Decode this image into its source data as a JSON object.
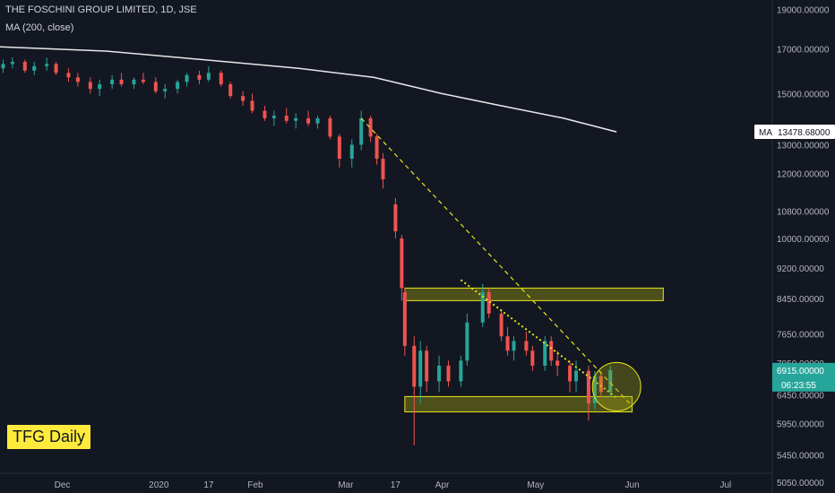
{
  "header": {
    "title": "THE FOSCHINI GROUP LIMITED, 1D, JSE",
    "indicator": "MA (200, close)"
  },
  "badge": {
    "label": "TFG Daily"
  },
  "colors": {
    "background": "#131722",
    "up": "#26a69a",
    "down": "#ef5350",
    "ma": "#e8e8e8",
    "annotation": "#e6e619",
    "zone_fill": "rgba(150,150,20,0.45)",
    "text": "#b2b5be"
  },
  "chart_data": {
    "type": "candlestick",
    "title": "THE FOSCHINI GROUP LIMITED, 1D, JSE",
    "y_scale": "log",
    "ylim": [
      4900,
      19500
    ],
    "xlim": [
      "2019-11-11",
      "2020-07-16"
    ],
    "x_ticks": [
      {
        "date": "2019-12-01",
        "label": "Dec"
      },
      {
        "date": "2020-01-01",
        "label": "2020"
      },
      {
        "date": "2020-01-17",
        "label": "17"
      },
      {
        "date": "2020-02-01",
        "label": "Feb"
      },
      {
        "date": "2020-03-01",
        "label": "Mar"
      },
      {
        "date": "2020-03-17",
        "label": "17"
      },
      {
        "date": "2020-04-01",
        "label": "Apr"
      },
      {
        "date": "2020-05-01",
        "label": "May"
      },
      {
        "date": "2020-06-01",
        "label": "Jun"
      },
      {
        "date": "2020-07-01",
        "label": "Jul"
      }
    ],
    "y_ticks": [
      "19000.00000",
      "17000.00000",
      "15000.00000",
      "13000.00000",
      "12000.00000",
      "10800.00000",
      "10000.00000",
      "9200.00000",
      "8450.00000",
      "7650.00000",
      "7050.00000",
      "6450.00000",
      "5950.00000",
      "5450.00000",
      "5050.00000"
    ],
    "y_tick_values": [
      19000,
      17000,
      15000,
      13000,
      12000,
      10800,
      10000,
      9200,
      8450,
      7650,
      7050,
      6450,
      5950,
      5450,
      5050
    ],
    "candles": [
      {
        "date": "2019-11-12",
        "o": 16100,
        "h": 16500,
        "l": 15900,
        "c": 16300
      },
      {
        "date": "2019-11-15",
        "o": 16300,
        "h": 16600,
        "l": 16100,
        "c": 16400
      },
      {
        "date": "2019-11-19",
        "o": 16400,
        "h": 16500,
        "l": 15900,
        "c": 16000
      },
      {
        "date": "2019-11-22",
        "o": 16000,
        "h": 16400,
        "l": 15800,
        "c": 16200
      },
      {
        "date": "2019-11-26",
        "o": 16200,
        "h": 16600,
        "l": 16000,
        "c": 16300
      },
      {
        "date": "2019-11-29",
        "o": 16300,
        "h": 16400,
        "l": 15800,
        "c": 15900
      },
      {
        "date": "2019-12-03",
        "o": 15900,
        "h": 16100,
        "l": 15500,
        "c": 15700
      },
      {
        "date": "2019-12-06",
        "o": 15700,
        "h": 15900,
        "l": 15300,
        "c": 15500
      },
      {
        "date": "2019-12-10",
        "o": 15500,
        "h": 15700,
        "l": 15000,
        "c": 15200
      },
      {
        "date": "2019-12-13",
        "o": 15200,
        "h": 15600,
        "l": 14900,
        "c": 15400
      },
      {
        "date": "2019-12-17",
        "o": 15400,
        "h": 15800,
        "l": 15200,
        "c": 15600
      },
      {
        "date": "2019-12-20",
        "o": 15600,
        "h": 15900,
        "l": 15300,
        "c": 15400
      },
      {
        "date": "2019-12-24",
        "o": 15400,
        "h": 15700,
        "l": 15200,
        "c": 15600
      },
      {
        "date": "2019-12-27",
        "o": 15600,
        "h": 15900,
        "l": 15400,
        "c": 15500
      },
      {
        "date": "2019-12-31",
        "o": 15500,
        "h": 15700,
        "l": 15000,
        "c": 15100
      },
      {
        "date": "2020-01-03",
        "o": 15100,
        "h": 15400,
        "l": 14800,
        "c": 15200
      },
      {
        "date": "2020-01-07",
        "o": 15200,
        "h": 15600,
        "l": 15000,
        "c": 15500
      },
      {
        "date": "2020-01-10",
        "o": 15500,
        "h": 15900,
        "l": 15300,
        "c": 15800
      },
      {
        "date": "2020-01-14",
        "o": 15800,
        "h": 16000,
        "l": 15400,
        "c": 15600
      },
      {
        "date": "2020-01-17",
        "o": 15600,
        "h": 16200,
        "l": 15500,
        "c": 15900
      },
      {
        "date": "2020-01-21",
        "o": 15900,
        "h": 16000,
        "l": 15300,
        "c": 15400
      },
      {
        "date": "2020-01-24",
        "o": 15400,
        "h": 15500,
        "l": 14800,
        "c": 14900
      },
      {
        "date": "2020-01-28",
        "o": 14900,
        "h": 15100,
        "l": 14500,
        "c": 14700
      },
      {
        "date": "2020-01-31",
        "o": 14700,
        "h": 15000,
        "l": 14200,
        "c": 14300
      },
      {
        "date": "2020-02-04",
        "o": 14300,
        "h": 14500,
        "l": 13900,
        "c": 14000
      },
      {
        "date": "2020-02-07",
        "o": 14000,
        "h": 14300,
        "l": 13700,
        "c": 14100
      },
      {
        "date": "2020-02-11",
        "o": 14100,
        "h": 14400,
        "l": 13800,
        "c": 13900
      },
      {
        "date": "2020-02-14",
        "o": 13900,
        "h": 14200,
        "l": 13600,
        "c": 14000
      },
      {
        "date": "2020-02-18",
        "o": 14000,
        "h": 14300,
        "l": 13700,
        "c": 13800
      },
      {
        "date": "2020-02-21",
        "o": 13800,
        "h": 14100,
        "l": 13600,
        "c": 14000
      },
      {
        "date": "2020-02-25",
        "o": 14000,
        "h": 14100,
        "l": 13200,
        "c": 13300
      },
      {
        "date": "2020-02-28",
        "o": 13300,
        "h": 13400,
        "l": 12200,
        "c": 12500
      },
      {
        "date": "2020-03-03",
        "o": 12500,
        "h": 13200,
        "l": 12200,
        "c": 13000
      },
      {
        "date": "2020-03-06",
        "o": 13000,
        "h": 14300,
        "l": 12800,
        "c": 14000
      },
      {
        "date": "2020-03-09",
        "o": 14000,
        "h": 14100,
        "l": 13100,
        "c": 13300
      },
      {
        "date": "2020-03-11",
        "o": 13300,
        "h": 13400,
        "l": 12300,
        "c": 12500
      },
      {
        "date": "2020-03-13",
        "o": 12500,
        "h": 12700,
        "l": 11500,
        "c": 11800
      },
      {
        "date": "2020-03-17",
        "o": 11000,
        "h": 11200,
        "l": 10000,
        "c": 10200
      },
      {
        "date": "2020-03-19",
        "o": 10000,
        "h": 10100,
        "l": 8400,
        "c": 8700
      },
      {
        "date": "2020-03-20",
        "o": 8600,
        "h": 8700,
        "l": 7200,
        "c": 7400
      },
      {
        "date": "2020-03-23",
        "o": 7400,
        "h": 7600,
        "l": 5600,
        "c": 6600
      },
      {
        "date": "2020-03-25",
        "o": 6600,
        "h": 7500,
        "l": 6300,
        "c": 7300
      },
      {
        "date": "2020-03-27",
        "o": 7300,
        "h": 7400,
        "l": 6500,
        "c": 6700
      },
      {
        "date": "2020-03-31",
        "o": 6700,
        "h": 7200,
        "l": 6500,
        "c": 7000
      },
      {
        "date": "2020-04-03",
        "o": 7000,
        "h": 7100,
        "l": 6600,
        "c": 6700
      },
      {
        "date": "2020-04-07",
        "o": 6700,
        "h": 7200,
        "l": 6600,
        "c": 7100
      },
      {
        "date": "2020-04-09",
        "o": 7100,
        "h": 8100,
        "l": 7000,
        "c": 7900
      },
      {
        "date": "2020-04-14",
        "o": 7900,
        "h": 8800,
        "l": 7800,
        "c": 8600
      },
      {
        "date": "2020-04-16",
        "o": 8600,
        "h": 8700,
        "l": 8000,
        "c": 8100
      },
      {
        "date": "2020-04-20",
        "o": 8100,
        "h": 8200,
        "l": 7500,
        "c": 7600
      },
      {
        "date": "2020-04-22",
        "o": 7600,
        "h": 7800,
        "l": 7200,
        "c": 7300
      },
      {
        "date": "2020-04-24",
        "o": 7300,
        "h": 7600,
        "l": 7100,
        "c": 7500
      },
      {
        "date": "2020-04-28",
        "o": 7500,
        "h": 7700,
        "l": 7200,
        "c": 7300
      },
      {
        "date": "2020-04-30",
        "o": 7300,
        "h": 7400,
        "l": 6900,
        "c": 7000
      },
      {
        "date": "2020-05-04",
        "o": 7000,
        "h": 7600,
        "l": 6900,
        "c": 7500
      },
      {
        "date": "2020-05-06",
        "o": 7500,
        "h": 7600,
        "l": 7000,
        "c": 7100
      },
      {
        "date": "2020-05-08",
        "o": 7100,
        "h": 7300,
        "l": 6800,
        "c": 7000
      },
      {
        "date": "2020-05-12",
        "o": 7000,
        "h": 7100,
        "l": 6500,
        "c": 6700
      },
      {
        "date": "2020-05-14",
        "o": 6700,
        "h": 7100,
        "l": 6500,
        "c": 6900
      },
      {
        "date": "2020-05-18",
        "o": 6900,
        "h": 7000,
        "l": 6000,
        "c": 6300
      },
      {
        "date": "2020-05-20",
        "o": 6300,
        "h": 6900,
        "l": 6200,
        "c": 6800
      },
      {
        "date": "2020-05-22",
        "o": 6800,
        "h": 6900,
        "l": 6400,
        "c": 6500
      },
      {
        "date": "2020-05-25",
        "o": 6500,
        "h": 7000,
        "l": 6400,
        "c": 6915
      }
    ],
    "moving_average": {
      "label": "MA",
      "value_label": "13478.68000",
      "points": [
        {
          "date": "2019-11-11",
          "v": 17100
        },
        {
          "date": "2019-12-15",
          "v": 16900
        },
        {
          "date": "2020-01-15",
          "v": 16500
        },
        {
          "date": "2020-02-15",
          "v": 16100
        },
        {
          "date": "2020-03-10",
          "v": 15700
        },
        {
          "date": "2020-04-01",
          "v": 15000
        },
        {
          "date": "2020-04-20",
          "v": 14500
        },
        {
          "date": "2020-05-10",
          "v": 14000
        },
        {
          "date": "2020-05-27",
          "v": 13478.68
        }
      ]
    },
    "last_price_label": "6915.00000",
    "countdown_label": "06:23:55",
    "annotations": {
      "resistance_zone": {
        "x0": "2020-03-20",
        "x1": "2020-06-11",
        "y0": 8400,
        "y1": 8700
      },
      "support_zone": {
        "x0": "2020-03-20",
        "x1": "2020-06-01",
        "y0": 6150,
        "y1": 6420
      },
      "trendline_long": {
        "x0": "2020-03-06",
        "y0": 14000,
        "x1": "2020-06-01",
        "y1": 6250
      },
      "trendline_short": {
        "x0": "2020-04-07",
        "y0": 8900,
        "x1": "2020-05-27",
        "y1": 6400
      },
      "circle": {
        "date": "2020-05-27",
        "v": 6600
      }
    }
  }
}
